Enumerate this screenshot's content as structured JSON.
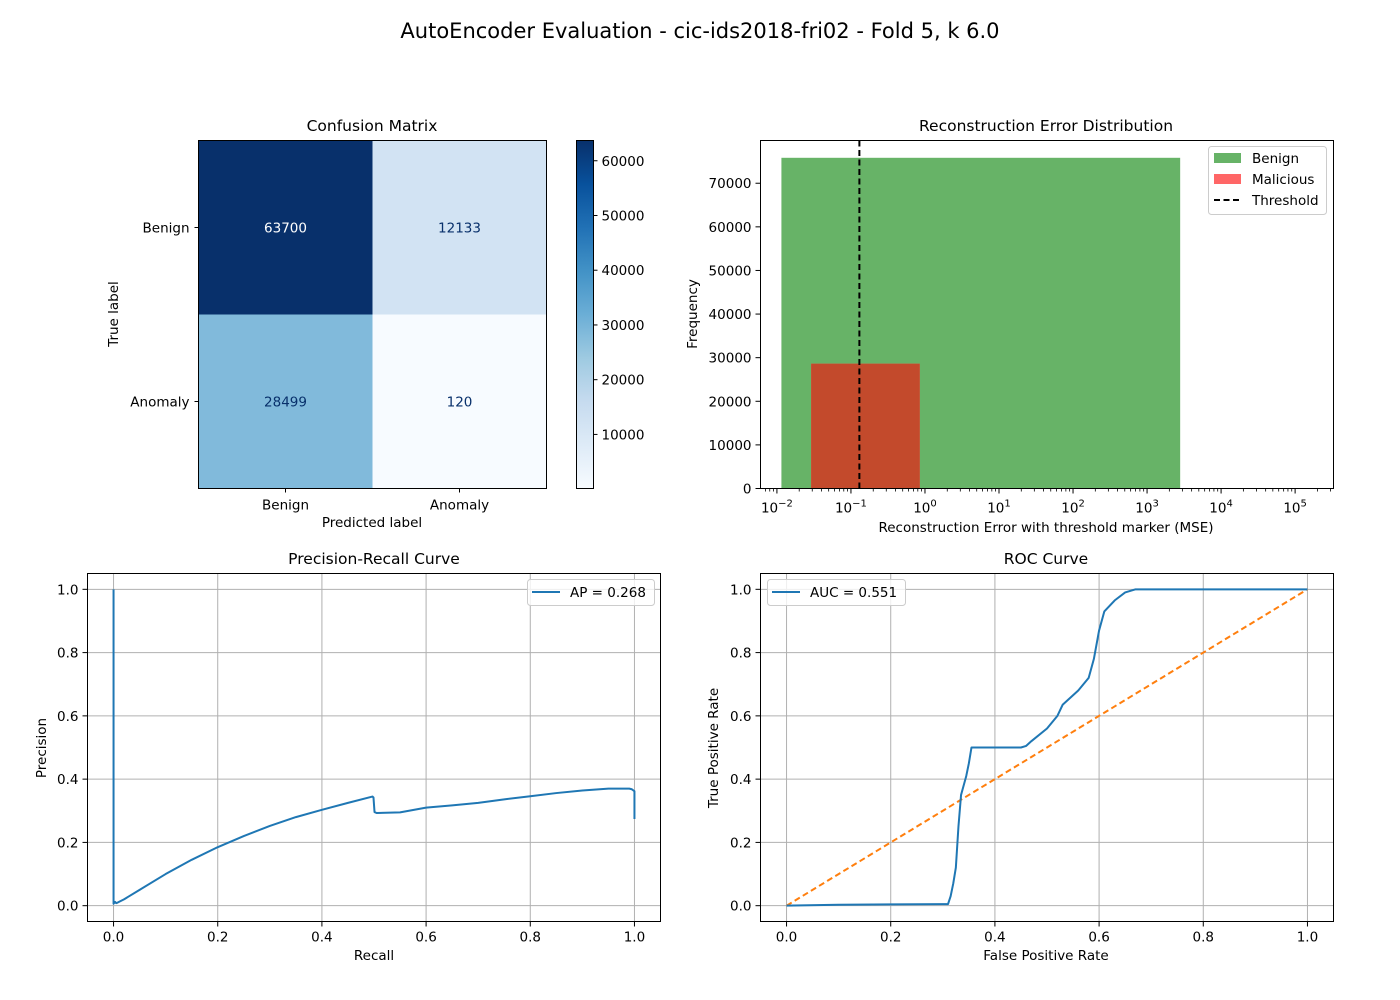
{
  "figure": {
    "suptitle": "AutoEncoder Evaluation - cic-ids2018-fri02 - Fold 5, k 6.0"
  },
  "colors": {
    "series_line": "#1f77b4",
    "diagonal": "#ff7f0e",
    "benign_bar": "#4ca64c",
    "malicious_bar": "#ff6666",
    "overlap_bar": "#c34a2c",
    "threshold": "#000000",
    "grid": "#b0b0b0",
    "cm_dark": "#08306b",
    "cm_light": "#f7fbff"
  },
  "chart_data": [
    {
      "type": "heatmap",
      "title": "Confusion Matrix",
      "xlabel": "Predicted label",
      "ylabel": "True label",
      "row_labels": [
        "Benign",
        "Anomaly"
      ],
      "col_labels": [
        "Benign",
        "Anomaly"
      ],
      "matrix": [
        [
          63700,
          12133
        ],
        [
          28499,
          120
        ]
      ],
      "cell_labels": [
        [
          "63700",
          "12133"
        ],
        [
          "28499",
          "120"
        ]
      ],
      "colormap": "Blues",
      "vmin": 120,
      "vmax": 63700,
      "colorbar_ticks": [
        10000,
        20000,
        30000,
        40000,
        50000,
        60000
      ],
      "colorbar_tick_labels": [
        "10000",
        "20000",
        "30000",
        "40000",
        "50000",
        "60000"
      ]
    },
    {
      "type": "bar",
      "title": "Reconstruction Error Distribution",
      "xlabel": "Reconstruction Error with threshold marker (MSE)",
      "ylabel": "Frequency",
      "xscale": "log",
      "xlim": [
        0.006,
        330000
      ],
      "ylim": [
        0,
        79800
      ],
      "xticks": [
        0.01,
        0.1,
        1,
        10,
        100,
        1000,
        10000,
        100000
      ],
      "xtick_exponents": [
        "−2",
        "−1",
        "0",
        "1",
        "2",
        "3",
        "4",
        "5"
      ],
      "xtick_base": "10",
      "yticks": [
        0,
        10000,
        20000,
        30000,
        40000,
        50000,
        60000,
        70000
      ],
      "ytick_labels": [
        "0",
        "10000",
        "20000",
        "30000",
        "40000",
        "50000",
        "60000",
        "70000"
      ],
      "series": [
        {
          "name": "Benign",
          "bins": [
            {
              "x0": 0.0115,
              "x1": 2800,
              "count": 75833
            }
          ]
        },
        {
          "name": "Malicious",
          "bins": [
            {
              "x0": 0.029,
              "x1": 0.85,
              "count": 28619
            }
          ]
        }
      ],
      "threshold": 0.13,
      "threshold_label": "Threshold",
      "legend": "top-right",
      "grid": false
    },
    {
      "type": "line",
      "title": "Precision-Recall Curve",
      "xlabel": "Recall",
      "ylabel": "Precision",
      "xlim": [
        -0.05,
        1.05
      ],
      "ylim": [
        -0.05,
        1.05
      ],
      "xticks": [
        0.0,
        0.2,
        0.4,
        0.6,
        0.8,
        1.0
      ],
      "xtick_labels": [
        "0.0",
        "0.2",
        "0.4",
        "0.6",
        "0.8",
        "1.0"
      ],
      "yticks": [
        0.0,
        0.2,
        0.4,
        0.6,
        0.8,
        1.0
      ],
      "ytick_labels": [
        "0.0",
        "0.2",
        "0.4",
        "0.6",
        "0.8",
        "1.0"
      ],
      "legend_label": "AP = 0.268",
      "legend": "top-right",
      "grid": true,
      "series": [
        {
          "x": [
            0.0,
            0.0,
            0.0,
            0.003,
            0.005,
            0.008,
            0.02,
            0.05,
            0.1,
            0.15,
            0.2,
            0.25,
            0.3,
            0.35,
            0.4,
            0.45,
            0.497,
            0.499,
            0.501,
            0.505,
            0.55,
            0.6,
            0.65,
            0.7,
            0.75,
            0.8,
            0.85,
            0.9,
            0.95,
            0.99,
            0.995,
            1.0,
            1.0
          ],
          "y": [
            1.0,
            0.5,
            0.006,
            0.012,
            0.008,
            0.01,
            0.02,
            0.05,
            0.1,
            0.145,
            0.185,
            0.22,
            0.252,
            0.28,
            0.303,
            0.325,
            0.345,
            0.342,
            0.296,
            0.293,
            0.295,
            0.31,
            0.317,
            0.325,
            0.336,
            0.346,
            0.356,
            0.364,
            0.37,
            0.37,
            0.368,
            0.362,
            0.274
          ]
        }
      ]
    },
    {
      "type": "line",
      "title": "ROC Curve",
      "xlabel": "False Positive Rate",
      "ylabel": "True Positive Rate",
      "xlim": [
        -0.05,
        1.05
      ],
      "ylim": [
        -0.05,
        1.05
      ],
      "xticks": [
        0.0,
        0.2,
        0.4,
        0.6,
        0.8,
        1.0
      ],
      "xtick_labels": [
        "0.0",
        "0.2",
        "0.4",
        "0.6",
        "0.8",
        "1.0"
      ],
      "yticks": [
        0.0,
        0.2,
        0.4,
        0.6,
        0.8,
        1.0
      ],
      "ytick_labels": [
        "0.0",
        "0.2",
        "0.4",
        "0.6",
        "0.8",
        "1.0"
      ],
      "legend_label": "AUC = 0.551",
      "legend": "top-left",
      "grid": true,
      "series": [
        {
          "x": [
            0.0,
            0.1,
            0.2,
            0.3,
            0.31,
            0.315,
            0.32,
            0.325,
            0.33,
            0.335,
            0.34,
            0.345,
            0.35,
            0.355,
            0.36,
            0.4,
            0.45,
            0.46,
            0.47,
            0.5,
            0.52,
            0.53,
            0.56,
            0.58,
            0.59,
            0.6,
            0.61,
            0.63,
            0.65,
            0.67,
            0.7,
            0.8,
            1.0
          ],
          "y": [
            0.0,
            0.003,
            0.004,
            0.005,
            0.005,
            0.03,
            0.07,
            0.12,
            0.25,
            0.35,
            0.38,
            0.41,
            0.45,
            0.5,
            0.5,
            0.5,
            0.5,
            0.505,
            0.52,
            0.56,
            0.6,
            0.635,
            0.68,
            0.72,
            0.78,
            0.87,
            0.93,
            0.965,
            0.99,
            1.0,
            1.0,
            1.0,
            1.0
          ]
        },
        {
          "x": [
            0.0,
            1.0
          ],
          "y": [
            0.0,
            1.0
          ],
          "style": "dashed"
        }
      ]
    }
  ]
}
